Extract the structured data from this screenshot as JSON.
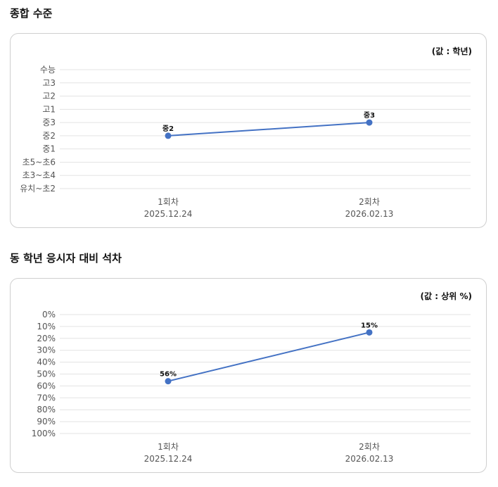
{
  "sections": [
    {
      "title": "종합 수준",
      "unit_label": "(값 : 학년)",
      "chart_data": {
        "type": "line",
        "title": "종합 수준",
        "ylabel": "(값 : 학년)",
        "y_categories": [
          "수능",
          "고3",
          "고2",
          "고1",
          "중3",
          "중2",
          "중1",
          "초5~초6",
          "초3~초4",
          "유치~초2"
        ],
        "x": [
          {
            "round": "1회차",
            "date": "2025.12.24"
          },
          {
            "round": "2회차",
            "date": "2026.02.13"
          }
        ],
        "series": [
          {
            "values": [
              "중2",
              "중3"
            ],
            "labels": [
              "중2",
              "중3"
            ],
            "color": "#4472c4"
          }
        ],
        "grid": true
      }
    },
    {
      "title": "동 학년 응시자 대비 석차",
      "unit_label": "(값 : 상위 %)",
      "chart_data": {
        "type": "line",
        "title": "동 학년 응시자 대비 석차",
        "ylabel": "(값 : 상위 %)",
        "y_ticks": [
          "0%",
          "10%",
          "20%",
          "30%",
          "40%",
          "50%",
          "60%",
          "70%",
          "80%",
          "90%",
          "100%"
        ],
        "ylim": [
          0,
          100
        ],
        "y_inverted": true,
        "x": [
          {
            "round": "1회차",
            "date": "2025.12.24"
          },
          {
            "round": "2회차",
            "date": "2026.02.13"
          }
        ],
        "series": [
          {
            "values": [
              56,
              15
            ],
            "labels": [
              "56%",
              "15%"
            ],
            "color": "#4472c4"
          }
        ],
        "grid": true
      }
    }
  ]
}
